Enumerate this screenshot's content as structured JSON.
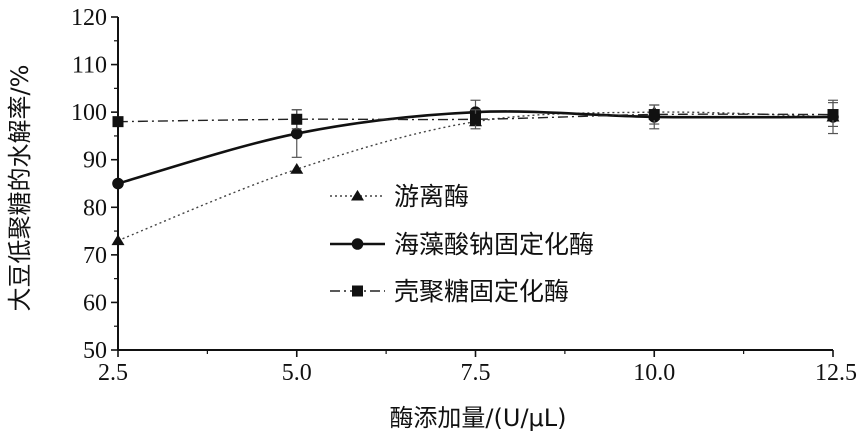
{
  "chart_data": {
    "type": "line",
    "title": "",
    "xlabel": "酶添加量/(U/μL)",
    "ylabel": "大豆低聚糖的水解率/%",
    "x": [
      2.5,
      5.0,
      7.5,
      10.0,
      12.5
    ],
    "x_tick_labels": [
      "2.5",
      "5.0",
      "7.5",
      "10.0",
      "12.5"
    ],
    "xlim": [
      2.5,
      12.5
    ],
    "ylim": [
      50,
      120
    ],
    "y_ticks": [
      50,
      60,
      70,
      80,
      90,
      100,
      110,
      120
    ],
    "grid": false,
    "legend_position": "center",
    "series": [
      {
        "name": "游离酶",
        "marker": "triangle",
        "line_style": "dotted",
        "values": [
          73,
          88,
          98,
          100,
          99
        ],
        "error": [
          0,
          0,
          0,
          0,
          0
        ]
      },
      {
        "name": "海藻酸钠固定化酶",
        "marker": "circle",
        "line_style": "solid",
        "values": [
          85,
          95.5,
          100,
          99,
          99
        ],
        "error": [
          0,
          5,
          2.5,
          2.5,
          3.5
        ]
      },
      {
        "name": "壳聚糖固定化酶",
        "marker": "square",
        "line_style": "dash-dot",
        "values": [
          98,
          98.5,
          98.5,
          99.5,
          99.5
        ],
        "error": [
          0,
          2,
          2,
          2,
          2.5
        ]
      }
    ]
  }
}
